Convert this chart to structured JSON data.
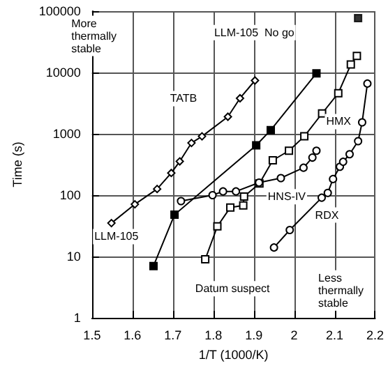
{
  "chart_data": {
    "type": "line",
    "xlabel": "1/T (1000/K)",
    "ylabel": "Time (s)",
    "log": "y",
    "grid": true,
    "xlim": [
      1.5,
      2.2
    ],
    "xticks": [
      1.5,
      1.6,
      1.7,
      1.8,
      1.9,
      2,
      2.1,
      2.2
    ],
    "ylim": [
      1,
      100000
    ],
    "yticks": [
      1,
      10,
      100,
      1000,
      10000,
      100000
    ],
    "series": [
      {
        "color": "#ffffff",
        "marker": "diamond",
        "x": [
          1.548,
          1.606,
          1.661,
          1.696,
          1.717,
          1.746,
          1.772,
          1.836,
          1.866,
          1.903
        ],
        "values": [
          35,
          71,
          126,
          230,
          355,
          710,
          910,
          1900,
          3800,
          7400
        ]
      },
      {
        "color": "#000000",
        "marker": "square",
        "x": [
          1.652,
          1.704,
          1.906,
          1.942,
          2.055
        ],
        "values": [
          7,
          48,
          650,
          1150,
          9700
        ]
      },
      {
        "color": "#ffffff",
        "marker": "square",
        "x": [
          1.78,
          1.81,
          1.842,
          1.874,
          1.876,
          1.914,
          1.947,
          1.987,
          2.025,
          2.069,
          2.109,
          2.14,
          2.155
        ],
        "values": [
          9,
          31,
          63,
          68,
          95,
          155,
          370,
          530,
          910,
          2150,
          4600,
          13500,
          18600
        ]
      },
      {
        "color": "#ffffff",
        "marker": "circle",
        "x": [
          1.72,
          1.798,
          1.824,
          1.856,
          1.913,
          1.967,
          2.023,
          2.045,
          2.055
        ],
        "values": [
          80,
          100,
          115,
          115,
          160,
          190,
          280,
          410,
          530
        ]
      },
      {
        "color": "#ffffff",
        "marker": "circle",
        "x": [
          1.95,
          1.989,
          2.068,
          2.083,
          2.096,
          2.113,
          2.121,
          2.137,
          2.158,
          2.168,
          2.181
        ],
        "values": [
          14,
          27,
          91,
          109,
          183,
          290,
          350,
          465,
          760,
          1540,
          6600
        ]
      },
      {
        "type": "scatter",
        "color": "#000000",
        "marker": "square",
        "x": [
          2.158
        ],
        "values": [
          77000
        ]
      }
    ],
    "annotations": [
      "More\nthermally\nstable",
      "TATB",
      "LLM-105  No go",
      "HMX",
      "HNS-IV",
      "RDX",
      "LLM-105",
      "Datum suspect",
      "Less\nthermally\nstable"
    ]
  }
}
